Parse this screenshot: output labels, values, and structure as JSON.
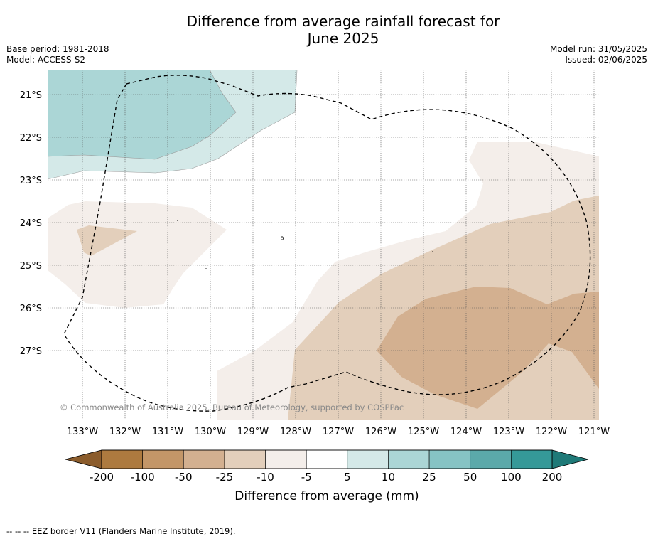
{
  "title_line1": "Difference from average rainfall forecast for",
  "title_line2": "June 2025",
  "base_period": "Base period: 1981-2018",
  "model": "Model: ACCESS-S2",
  "model_run": "Model run: 31/05/2025",
  "issued": "Issued: 02/06/2025",
  "copyright": "© Commonwealth of Australia 2025, Bureau of Meteorology, supported by COSPPac",
  "colorbar_label": "Difference from average (mm)",
  "colorbar_ticks": [
    "-200",
    "-100",
    "-50",
    "-25",
    "-10",
    "-5",
    "5",
    "10",
    "25",
    "50",
    "100",
    "200"
  ],
  "colorbar_colors": [
    "#ad7a3f",
    "#c39668",
    "#d3b090",
    "#e3cfbb",
    "#f4eeea",
    "#ffffff",
    "#d4e9e8",
    "#abd6d6",
    "#86c3c4",
    "#5ba9aa",
    "#359998"
  ],
  "colorbar_under_color": "#8b5c2c",
  "colorbar_over_color": "#1f7a78",
  "footer_legend": "--  --  -- EEZ border V11 (Flanders Marine Institute, 2019).",
  "map": {
    "lon_labels": [
      "133°W",
      "132°W",
      "131°W",
      "130°W",
      "129°W",
      "128°W",
      "127°W",
      "126°W",
      "125°W",
      "124°W",
      "123°W",
      "122°W",
      "121°W"
    ],
    "lat_labels": [
      "21°S",
      "22°S",
      "23°S",
      "24°S",
      "25°S",
      "26°S",
      "27°S"
    ],
    "lon_range": [
      -133.8,
      -120.9
    ],
    "lat_range": [
      -28.6,
      -20.4
    ]
  }
}
